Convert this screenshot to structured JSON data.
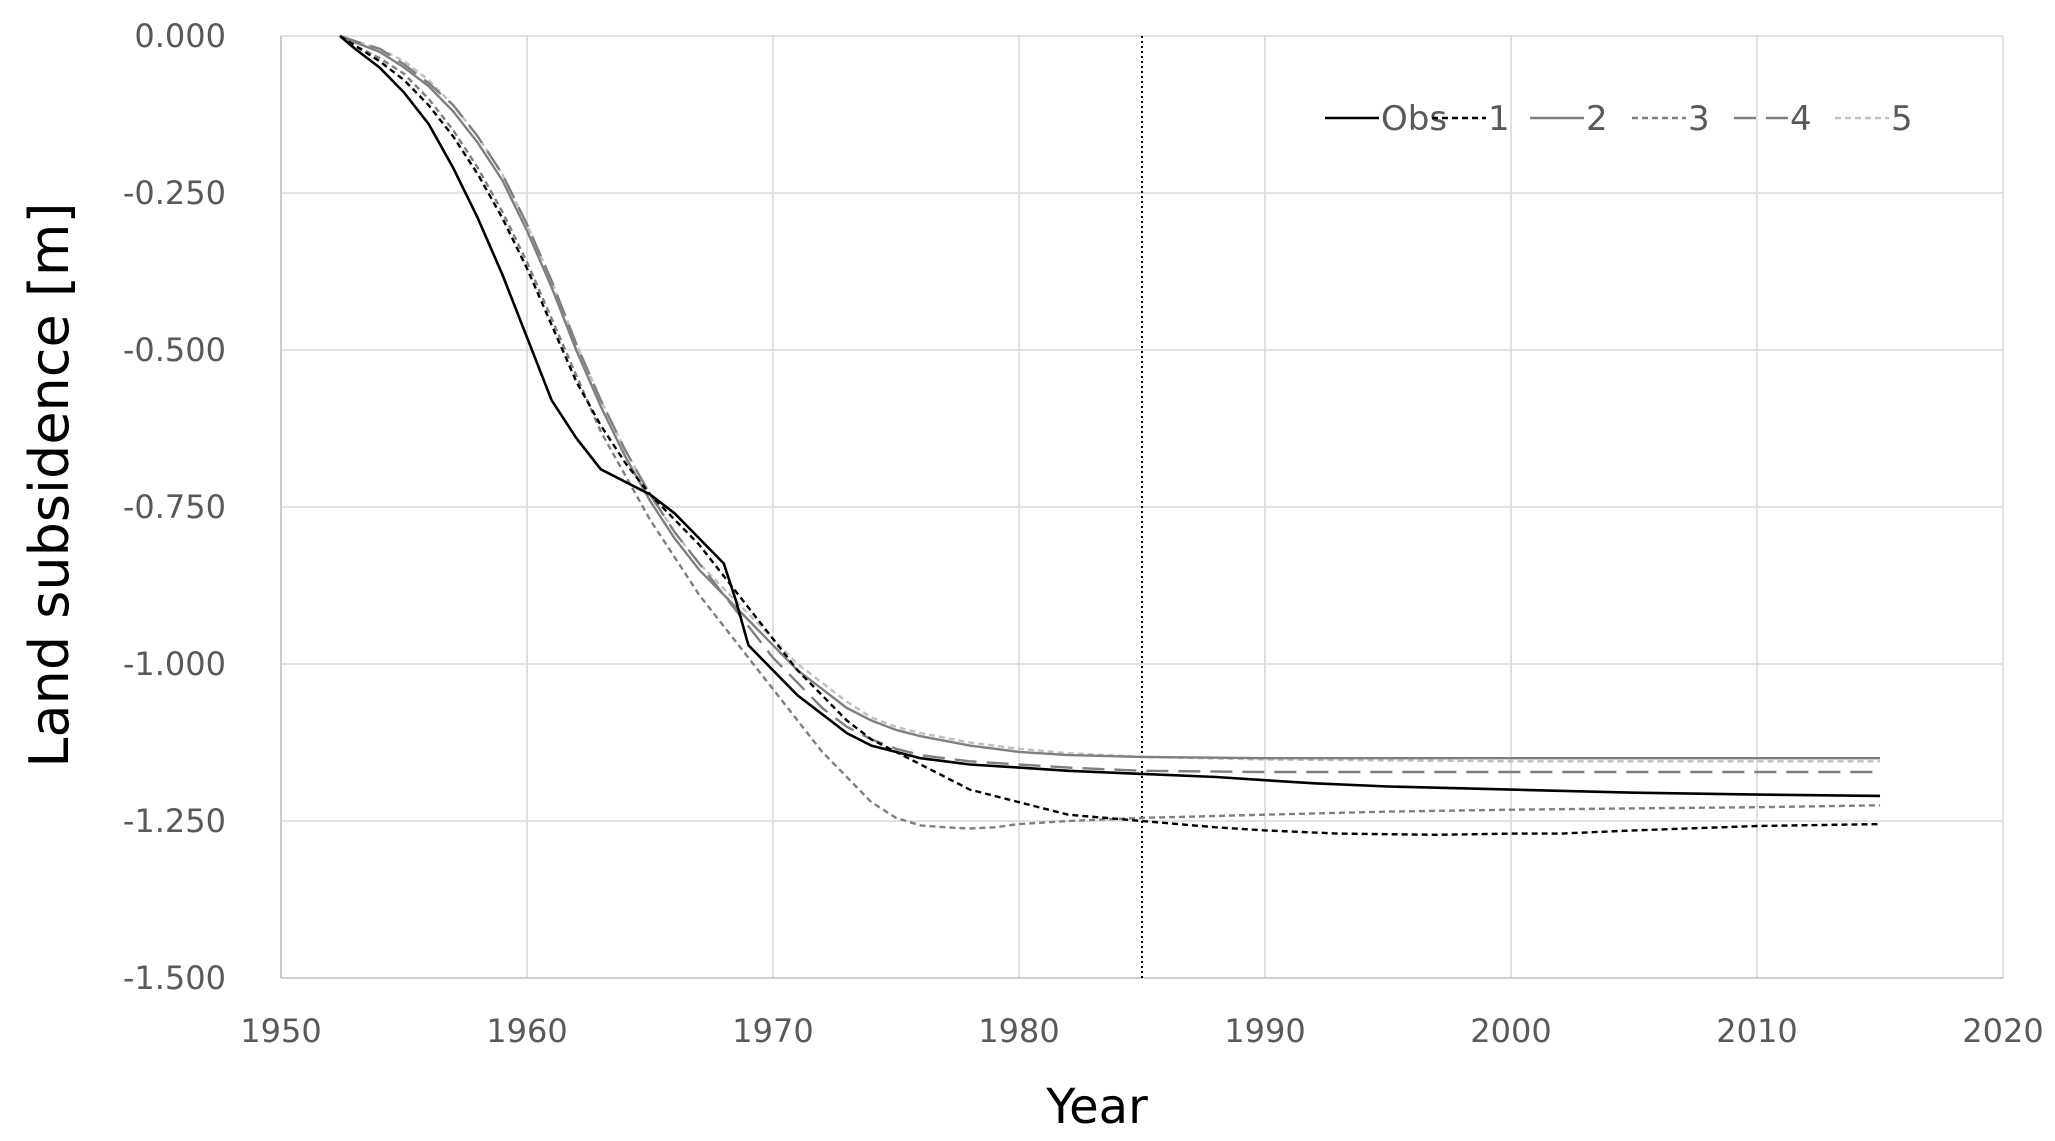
{
  "chart_data": {
    "type": "line",
    "title": "",
    "xlabel": "Year",
    "ylabel": "Land subsidence [m]",
    "xlim": [
      1950,
      2020
    ],
    "ylim": [
      -1.5,
      0.0
    ],
    "x_ticks": [
      "1950",
      "1960",
      "1970",
      "1980",
      "1990",
      "2000",
      "2010",
      "2020"
    ],
    "y_ticks": [
      "0.000",
      "-0.250",
      "-0.500",
      "-0.750",
      "-1.000",
      "-1.250",
      "-1.500"
    ],
    "grid": true,
    "legend_position": "top-right",
    "reference_line_x": 1985,
    "series": [
      {
        "name": "Obs",
        "color": "#000000",
        "dash": "solid",
        "x": [
          1952.4,
          1953,
          1954,
          1955,
          1956,
          1957,
          1958,
          1959,
          1960,
          1961,
          1962,
          1963,
          1964,
          1964.5,
          1965,
          1966,
          1967,
          1968,
          1968.5,
          1969,
          1970,
          1971,
          1972,
          1973,
          1974,
          1975,
          1976,
          1977,
          1978,
          1980,
          1982,
          1985,
          1988,
          1990,
          1992,
          1995,
          2000,
          2005,
          2010,
          2015
        ],
        "y": [
          0.0,
          -0.02,
          -0.05,
          -0.09,
          -0.14,
          -0.21,
          -0.29,
          -0.38,
          -0.48,
          -0.58,
          -0.64,
          -0.69,
          -0.71,
          -0.72,
          -0.73,
          -0.76,
          -0.8,
          -0.84,
          -0.9,
          -0.97,
          -1.01,
          -1.05,
          -1.08,
          -1.11,
          -1.13,
          -1.14,
          -1.15,
          -1.155,
          -1.16,
          -1.165,
          -1.17,
          -1.175,
          -1.18,
          -1.185,
          -1.19,
          -1.195,
          -1.2,
          -1.205,
          -1.208,
          -1.21
        ]
      },
      {
        "name": "1",
        "color": "#000000",
        "dash": "short",
        "x": [
          1952.4,
          1953,
          1954,
          1955,
          1956,
          1957,
          1958,
          1959,
          1960,
          1961,
          1962,
          1963,
          1964,
          1965,
          1966,
          1967,
          1968,
          1969,
          1970,
          1971,
          1972,
          1973,
          1974,
          1975,
          1976,
          1977,
          1978,
          1980,
          1982,
          1985,
          1988,
          1990,
          1993,
          1997,
          2000,
          2002,
          2005,
          2010,
          2015
        ],
        "y": [
          0.0,
          -0.015,
          -0.04,
          -0.07,
          -0.11,
          -0.16,
          -0.22,
          -0.29,
          -0.37,
          -0.46,
          -0.55,
          -0.62,
          -0.68,
          -0.73,
          -0.77,
          -0.81,
          -0.86,
          -0.91,
          -0.96,
          -1.01,
          -1.05,
          -1.09,
          -1.12,
          -1.14,
          -1.16,
          -1.18,
          -1.2,
          -1.22,
          -1.24,
          -1.25,
          -1.26,
          -1.265,
          -1.27,
          -1.272,
          -1.27,
          -1.27,
          -1.265,
          -1.258,
          -1.255
        ]
      },
      {
        "name": "2",
        "color": "#7f7f7f",
        "dash": "solid",
        "x": [
          1952.4,
          1953,
          1954,
          1955,
          1956,
          1957,
          1958,
          1959,
          1960,
          1961,
          1962,
          1963,
          1964,
          1965,
          1966,
          1967,
          1968,
          1969,
          1970,
          1971,
          1972,
          1973,
          1974,
          1975,
          1976,
          1978,
          1980,
          1982,
          1985,
          1990,
          2000,
          2010,
          2015
        ],
        "y": [
          0.0,
          -0.01,
          -0.025,
          -0.05,
          -0.08,
          -0.12,
          -0.17,
          -0.23,
          -0.31,
          -0.4,
          -0.5,
          -0.59,
          -0.67,
          -0.74,
          -0.8,
          -0.85,
          -0.89,
          -0.93,
          -0.97,
          -1.01,
          -1.04,
          -1.07,
          -1.09,
          -1.105,
          -1.115,
          -1.13,
          -1.14,
          -1.145,
          -1.148,
          -1.15,
          -1.15,
          -1.15,
          -1.15
        ]
      },
      {
        "name": "3",
        "color": "#7f7f7f",
        "dash": "short",
        "x": [
          1952.4,
          1953,
          1954,
          1955,
          1956,
          1957,
          1958,
          1959,
          1960,
          1961,
          1962,
          1963,
          1964,
          1965,
          1966,
          1967,
          1968,
          1969,
          1970,
          1971,
          1972,
          1973,
          1974,
          1975,
          1976,
          1977,
          1978,
          1979,
          1980,
          1982,
          1985,
          1990,
          1995,
          2000,
          2005,
          2010,
          2015
        ],
        "y": [
          0.0,
          -0.015,
          -0.035,
          -0.06,
          -0.1,
          -0.15,
          -0.21,
          -0.28,
          -0.36,
          -0.45,
          -0.54,
          -0.63,
          -0.7,
          -0.77,
          -0.83,
          -0.89,
          -0.94,
          -0.99,
          -1.04,
          -1.09,
          -1.14,
          -1.18,
          -1.22,
          -1.245,
          -1.257,
          -1.26,
          -1.262,
          -1.26,
          -1.255,
          -1.25,
          -1.245,
          -1.24,
          -1.235,
          -1.232,
          -1.23,
          -1.228,
          -1.225
        ]
      },
      {
        "name": "4",
        "color": "#7f7f7f",
        "dash": "long",
        "x": [
          1952.4,
          1953,
          1954,
          1955,
          1956,
          1957,
          1958,
          1959,
          1960,
          1961,
          1962,
          1963,
          1964,
          1965,
          1966,
          1967,
          1968,
          1969,
          1970,
          1971,
          1972,
          1973,
          1974,
          1975,
          1976,
          1978,
          1980,
          1982,
          1985,
          1990,
          2000,
          2010,
          2015
        ],
        "y": [
          0.0,
          -0.008,
          -0.02,
          -0.045,
          -0.075,
          -0.11,
          -0.16,
          -0.22,
          -0.3,
          -0.39,
          -0.49,
          -0.58,
          -0.66,
          -0.73,
          -0.79,
          -0.84,
          -0.89,
          -0.94,
          -0.99,
          -1.03,
          -1.07,
          -1.1,
          -1.12,
          -1.135,
          -1.145,
          -1.155,
          -1.16,
          -1.165,
          -1.17,
          -1.172,
          -1.172,
          -1.172,
          -1.172
        ]
      },
      {
        "name": "5",
        "color": "#bfbfbf",
        "dash": "short",
        "x": [
          1952.4,
          1953,
          1954,
          1955,
          1956,
          1957,
          1958,
          1959,
          1960,
          1961,
          1962,
          1963,
          1964,
          1965,
          1966,
          1967,
          1968,
          1969,
          1970,
          1971,
          1972,
          1973,
          1974,
          1975,
          1976,
          1978,
          1980,
          1982,
          1985,
          1990,
          2000,
          2010,
          2015
        ],
        "y": [
          0.0,
          -0.008,
          -0.02,
          -0.04,
          -0.07,
          -0.11,
          -0.16,
          -0.22,
          -0.3,
          -0.39,
          -0.49,
          -0.58,
          -0.66,
          -0.73,
          -0.79,
          -0.84,
          -0.88,
          -0.92,
          -0.96,
          -1.0,
          -1.03,
          -1.06,
          -1.085,
          -1.1,
          -1.11,
          -1.125,
          -1.135,
          -1.142,
          -1.148,
          -1.152,
          -1.155,
          -1.155,
          -1.155
        ]
      }
    ]
  }
}
